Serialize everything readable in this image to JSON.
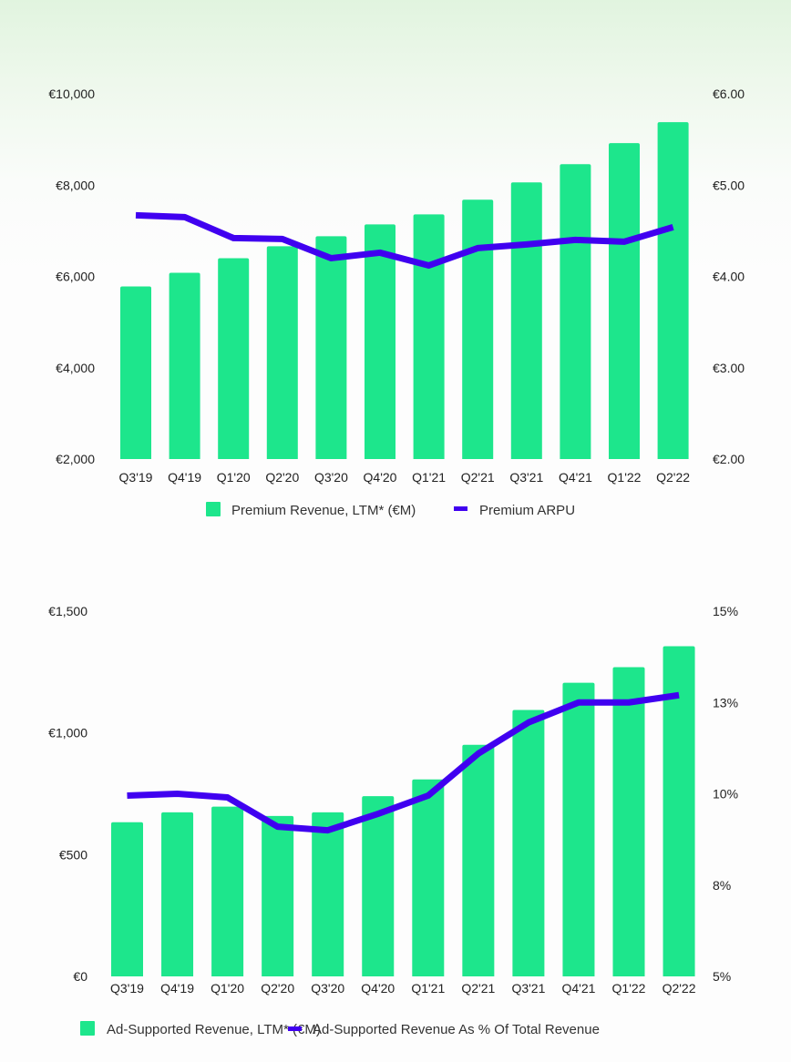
{
  "colors": {
    "bar": "#1de68c",
    "line": "#4000f0",
    "text": "#222222"
  },
  "chart_data": [
    {
      "type": "bar+line",
      "title": "",
      "categories": [
        "Q3'19",
        "Q4'19",
        "Q1'20",
        "Q2'20",
        "Q3'20",
        "Q4'20",
        "Q1'21",
        "Q2'21",
        "Q3'21",
        "Q4'21",
        "Q1'22",
        "Q2'22"
      ],
      "series": [
        {
          "name": "Premium Revenue, LTM* (€M)",
          "type": "bar",
          "axis": "left",
          "values": [
            5780,
            6080,
            6400,
            6660,
            6880,
            7140,
            7360,
            7680,
            8060,
            8460,
            8920,
            9380
          ]
        },
        {
          "name": "Premium ARPU",
          "type": "line",
          "axis": "right",
          "values": [
            4.67,
            4.65,
            4.42,
            4.41,
            4.2,
            4.26,
            4.12,
            4.31,
            4.35,
            4.4,
            4.38,
            4.54
          ]
        }
      ],
      "left_axis": {
        "range": [
          2000,
          10000
        ],
        "ticks": [
          10000,
          8000,
          6000,
          4000,
          2000
        ],
        "tick_labels": [
          "€10,000",
          "€8,000",
          "€6,000",
          "€4,000",
          "€2,000"
        ]
      },
      "right_axis": {
        "range": [
          2.0,
          6.0
        ],
        "ticks": [
          6,
          5,
          4,
          3,
          2
        ],
        "tick_labels": [
          "€6.00",
          "€5.00",
          "€4.00",
          "€3.00",
          "€2.00"
        ]
      },
      "grid": false,
      "legend": {
        "position": "bottom-center",
        "items": [
          {
            "label": "Premium Revenue, LTM* (€M)",
            "kind": "square"
          },
          {
            "label": "Premium ARPU",
            "kind": "line"
          }
        ]
      }
    },
    {
      "type": "bar+line",
      "title": "",
      "categories": [
        "Q3'19",
        "Q4'19",
        "Q1'20",
        "Q2'20",
        "Q3'20",
        "Q4'20",
        "Q1'21",
        "Q2'21",
        "Q3'21",
        "Q4'21",
        "Q1'22",
        "Q2'22"
      ],
      "series": [
        {
          "name": "Ad-Supported Revenue, LTM* (€M)",
          "type": "bar",
          "axis": "left",
          "values": [
            633,
            674,
            697,
            659,
            674,
            740,
            809,
            951,
            1094,
            1206,
            1270,
            1356
          ]
        },
        {
          "name": "Ad-Supported Revenue As % Of Total Revenue",
          "type": "line",
          "axis": "right",
          "values": [
            9.95,
            10.0,
            9.9,
            9.1,
            9.0,
            9.45,
            9.95,
            11.1,
            11.95,
            12.5,
            12.5,
            12.7
          ]
        }
      ],
      "left_axis": {
        "range": [
          0,
          1500
        ],
        "ticks": [
          1500,
          1000,
          500,
          0
        ],
        "tick_labels": [
          "€1,500",
          "€1,000",
          "€500",
          "€0"
        ]
      },
      "right_axis": {
        "range": [
          5,
          15
        ],
        "ticks": [
          15,
          12.5,
          10,
          7.5,
          5
        ],
        "tick_labels": [
          "15%",
          "13%",
          "10%",
          "8%",
          "5%"
        ]
      },
      "grid": false,
      "legend": {
        "position": "bottom-center",
        "items": [
          {
            "label": "Ad-Supported Revenue, LTM* (€M)",
            "kind": "square"
          },
          {
            "label": "Ad-Supported Revenue As % Of Total Revenue",
            "kind": "line"
          }
        ]
      }
    }
  ]
}
